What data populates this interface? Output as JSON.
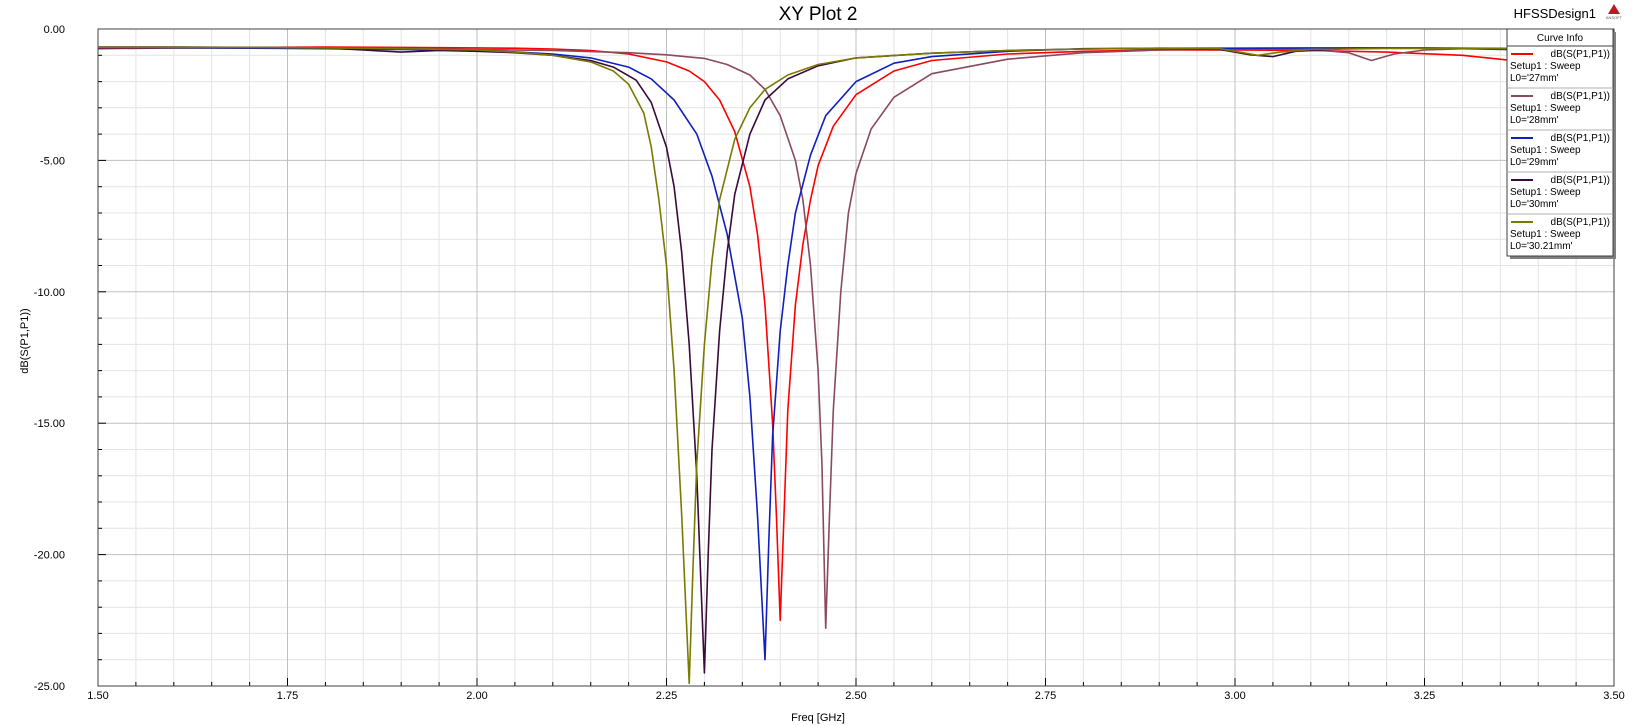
{
  "window": {
    "design_name": "HFSSDesign1",
    "logo_text": "ANSOFT"
  },
  "colors": {
    "background": "#ffffff",
    "grid_major": "#c0c0c0",
    "grid_minor": "#e4e4e4",
    "frame": "#404040"
  },
  "chart_data": {
    "type": "line",
    "title": "XY Plot 2",
    "xlabel": "Freq [GHz]",
    "ylabel": "dB(S(P1,P1))",
    "xlim": [
      1.5,
      3.5
    ],
    "ylim": [
      -25,
      0
    ],
    "grid": true,
    "x_ticks": [
      "1.50",
      "1.75",
      "2.00",
      "2.25",
      "2.50",
      "2.75",
      "3.00",
      "3.25",
      "3.50"
    ],
    "y_ticks": [
      "0.00",
      "-5.00",
      "-10.00",
      "-15.00",
      "-20.00",
      "-25.00"
    ],
    "legend": {
      "title": "Curve Info",
      "placement": "top-right"
    },
    "series": [
      {
        "name": "dB(S(P1,P1))",
        "line2": "Setup1 : Sweep",
        "line3": "L0='27mm'",
        "color": "#ff0000",
        "points": [
          [
            1.5,
            -0.75
          ],
          [
            1.6,
            -0.72
          ],
          [
            1.7,
            -0.7
          ],
          [
            1.8,
            -0.69
          ],
          [
            1.9,
            -0.7
          ],
          [
            2.0,
            -0.72
          ],
          [
            2.05,
            -0.73
          ],
          [
            2.1,
            -0.76
          ],
          [
            2.15,
            -0.82
          ],
          [
            2.2,
            -0.95
          ],
          [
            2.25,
            -1.25
          ],
          [
            2.28,
            -1.6
          ],
          [
            2.3,
            -2.0
          ],
          [
            2.32,
            -2.7
          ],
          [
            2.34,
            -3.9
          ],
          [
            2.36,
            -6.0
          ],
          [
            2.37,
            -7.8
          ],
          [
            2.38,
            -10.5
          ],
          [
            2.39,
            -15.0
          ],
          [
            2.395,
            -18.5
          ],
          [
            2.4,
            -22.5
          ],
          [
            2.405,
            -18.5
          ],
          [
            2.41,
            -14.5
          ],
          [
            2.42,
            -10.5
          ],
          [
            2.43,
            -8.2
          ],
          [
            2.44,
            -6.5
          ],
          [
            2.45,
            -5.2
          ],
          [
            2.47,
            -3.7
          ],
          [
            2.5,
            -2.5
          ],
          [
            2.55,
            -1.6
          ],
          [
            2.6,
            -1.2
          ],
          [
            2.7,
            -0.95
          ],
          [
            2.8,
            -0.85
          ],
          [
            2.9,
            -0.8
          ],
          [
            3.0,
            -0.8
          ],
          [
            3.1,
            -0.82
          ],
          [
            3.2,
            -0.88
          ],
          [
            3.3,
            -1.0
          ],
          [
            3.4,
            -1.3
          ],
          [
            3.5,
            -1.7
          ]
        ]
      },
      {
        "name": "dB(S(P1,P1))",
        "line2": "Setup1 : Sweep",
        "line3": "L0='28mm'",
        "color": "#8a4a5e",
        "points": [
          [
            1.5,
            -0.68
          ],
          [
            1.6,
            -0.68
          ],
          [
            1.7,
            -0.7
          ],
          [
            1.8,
            -0.72
          ],
          [
            1.9,
            -0.75
          ],
          [
            2.0,
            -0.78
          ],
          [
            2.1,
            -0.82
          ],
          [
            2.2,
            -0.9
          ],
          [
            2.25,
            -0.98
          ],
          [
            2.3,
            -1.12
          ],
          [
            2.33,
            -1.35
          ],
          [
            2.36,
            -1.75
          ],
          [
            2.38,
            -2.3
          ],
          [
            2.4,
            -3.3
          ],
          [
            2.42,
            -5.0
          ],
          [
            2.43,
            -6.5
          ],
          [
            2.44,
            -9.0
          ],
          [
            2.45,
            -13.0
          ],
          [
            2.455,
            -16.5
          ],
          [
            2.46,
            -22.8
          ],
          [
            2.465,
            -18.5
          ],
          [
            2.47,
            -14.5
          ],
          [
            2.48,
            -10.0
          ],
          [
            2.49,
            -7.0
          ],
          [
            2.5,
            -5.5
          ],
          [
            2.52,
            -3.8
          ],
          [
            2.55,
            -2.6
          ],
          [
            2.6,
            -1.7
          ],
          [
            2.7,
            -1.15
          ],
          [
            2.8,
            -0.9
          ],
          [
            2.9,
            -0.8
          ],
          [
            3.0,
            -0.75
          ],
          [
            3.1,
            -0.78
          ],
          [
            3.15,
            -0.9
          ],
          [
            3.18,
            -1.2
          ],
          [
            3.21,
            -0.95
          ],
          [
            3.25,
            -0.8
          ],
          [
            3.3,
            -0.75
          ],
          [
            3.4,
            -0.75
          ],
          [
            3.5,
            -0.8
          ]
        ]
      },
      {
        "name": "dB(S(P1,P1))",
        "line2": "Setup1 : Sweep",
        "line3": "L0='29mm'",
        "color": "#1020c0",
        "points": [
          [
            1.5,
            -0.72
          ],
          [
            1.6,
            -0.72
          ],
          [
            1.7,
            -0.73
          ],
          [
            1.8,
            -0.75
          ],
          [
            1.9,
            -0.78
          ],
          [
            2.0,
            -0.82
          ],
          [
            2.05,
            -0.87
          ],
          [
            2.1,
            -0.95
          ],
          [
            2.15,
            -1.1
          ],
          [
            2.2,
            -1.45
          ],
          [
            2.23,
            -1.9
          ],
          [
            2.26,
            -2.7
          ],
          [
            2.29,
            -4.0
          ],
          [
            2.31,
            -5.6
          ],
          [
            2.33,
            -7.8
          ],
          [
            2.35,
            -11.0
          ],
          [
            2.36,
            -14.0
          ],
          [
            2.37,
            -18.5
          ],
          [
            2.38,
            -24.0
          ],
          [
            2.385,
            -19.5
          ],
          [
            2.39,
            -15.5
          ],
          [
            2.4,
            -11.5
          ],
          [
            2.41,
            -9.0
          ],
          [
            2.42,
            -7.0
          ],
          [
            2.44,
            -4.8
          ],
          [
            2.46,
            -3.3
          ],
          [
            2.5,
            -2.0
          ],
          [
            2.55,
            -1.3
          ],
          [
            2.6,
            -1.05
          ],
          [
            2.7,
            -0.85
          ],
          [
            2.8,
            -0.75
          ],
          [
            2.9,
            -0.73
          ],
          [
            3.0,
            -0.73
          ],
          [
            3.1,
            -0.72
          ],
          [
            3.2,
            -0.72
          ],
          [
            3.3,
            -0.75
          ],
          [
            3.4,
            -0.8
          ],
          [
            3.5,
            -0.85
          ]
        ]
      },
      {
        "name": "dB(S(P1,P1))",
        "line2": "Setup1 : Sweep",
        "line3": "L0='30mm'",
        "color": "#3a0a3a",
        "points": [
          [
            1.5,
            -0.7
          ],
          [
            1.6,
            -0.7
          ],
          [
            1.7,
            -0.7
          ],
          [
            1.8,
            -0.72
          ],
          [
            1.85,
            -0.8
          ],
          [
            1.9,
            -0.88
          ],
          [
            1.95,
            -0.82
          ],
          [
            2.0,
            -0.85
          ],
          [
            2.05,
            -0.9
          ],
          [
            2.1,
            -1.0
          ],
          [
            2.15,
            -1.2
          ],
          [
            2.18,
            -1.45
          ],
          [
            2.21,
            -1.95
          ],
          [
            2.23,
            -2.8
          ],
          [
            2.25,
            -4.5
          ],
          [
            2.26,
            -6.0
          ],
          [
            2.27,
            -8.5
          ],
          [
            2.28,
            -12.0
          ],
          [
            2.29,
            -17.0
          ],
          [
            2.3,
            -24.5
          ],
          [
            2.305,
            -20.0
          ],
          [
            2.31,
            -16.0
          ],
          [
            2.32,
            -11.5
          ],
          [
            2.33,
            -8.5
          ],
          [
            2.34,
            -6.3
          ],
          [
            2.36,
            -4.0
          ],
          [
            2.38,
            -2.7
          ],
          [
            2.41,
            -1.9
          ],
          [
            2.45,
            -1.4
          ],
          [
            2.5,
            -1.1
          ],
          [
            2.6,
            -0.92
          ],
          [
            2.7,
            -0.82
          ],
          [
            2.8,
            -0.76
          ],
          [
            2.9,
            -0.74
          ],
          [
            2.98,
            -0.78
          ],
          [
            3.02,
            -0.98
          ],
          [
            3.05,
            -1.05
          ],
          [
            3.08,
            -0.85
          ],
          [
            3.15,
            -0.74
          ],
          [
            3.25,
            -0.72
          ],
          [
            3.35,
            -0.74
          ],
          [
            3.5,
            -0.78
          ]
        ]
      },
      {
        "name": "dB(S(P1,P1))",
        "line2": "Setup1 : Sweep",
        "line3": "L0='30.21mm'",
        "color": "#7a7a00",
        "points": [
          [
            1.5,
            -0.7
          ],
          [
            1.6,
            -0.7
          ],
          [
            1.7,
            -0.7
          ],
          [
            1.8,
            -0.72
          ],
          [
            1.9,
            -0.75
          ],
          [
            2.0,
            -0.8
          ],
          [
            2.05,
            -0.88
          ],
          [
            2.1,
            -1.0
          ],
          [
            2.15,
            -1.25
          ],
          [
            2.18,
            -1.6
          ],
          [
            2.2,
            -2.1
          ],
          [
            2.22,
            -3.2
          ],
          [
            2.23,
            -4.5
          ],
          [
            2.24,
            -6.5
          ],
          [
            2.25,
            -9.0
          ],
          [
            2.26,
            -13.0
          ],
          [
            2.27,
            -18.5
          ],
          [
            2.28,
            -24.9
          ],
          [
            2.285,
            -20.5
          ],
          [
            2.29,
            -16.5
          ],
          [
            2.3,
            -12.0
          ],
          [
            2.31,
            -8.8
          ],
          [
            2.32,
            -6.5
          ],
          [
            2.34,
            -4.2
          ],
          [
            2.36,
            -3.0
          ],
          [
            2.38,
            -2.3
          ],
          [
            2.41,
            -1.75
          ],
          [
            2.45,
            -1.35
          ],
          [
            2.5,
            -1.1
          ],
          [
            2.6,
            -0.92
          ],
          [
            2.7,
            -0.82
          ],
          [
            2.8,
            -0.76
          ],
          [
            2.9,
            -0.73
          ],
          [
            2.98,
            -0.75
          ],
          [
            3.0,
            -0.85
          ],
          [
            3.03,
            -1.0
          ],
          [
            3.06,
            -0.88
          ],
          [
            3.1,
            -0.78
          ],
          [
            3.2,
            -0.74
          ],
          [
            3.3,
            -0.74
          ],
          [
            3.5,
            -0.76
          ]
        ]
      }
    ]
  }
}
